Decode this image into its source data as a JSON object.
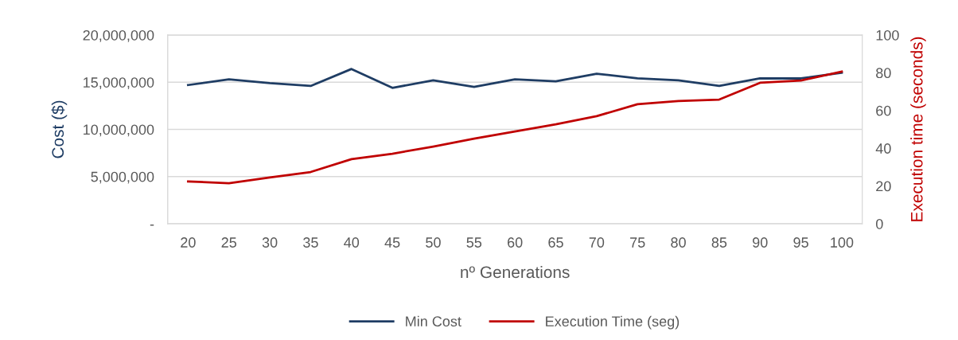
{
  "chart_data": {
    "type": "line",
    "xlabel": "nº Generations",
    "ylabel": "Cost ($)",
    "y2label": "Execution time (seconds)",
    "categories": [
      "20",
      "25",
      "30",
      "35",
      "40",
      "45",
      "50",
      "55",
      "60",
      "65",
      "70",
      "75",
      "80",
      "85",
      "90",
      "95",
      "100"
    ],
    "series": [
      {
        "name": "Min Cost",
        "color": "#1f3d64",
        "values": [
          14700000,
          15300000,
          14900000,
          14600000,
          16400000,
          14400000,
          15200000,
          14500000,
          15300000,
          15100000,
          15900000,
          15400000,
          15200000,
          14600000,
          15400000,
          15400000,
          16000000
        ]
      },
      {
        "name": "Execution Time (seg)",
        "color": "#c00000",
        "axis": "y2",
        "values": [
          22.4,
          21.5,
          24.5,
          27.4,
          34.2,
          37.1,
          40.9,
          45.1,
          48.9,
          52.7,
          57.0,
          63.3,
          65.0,
          65.8,
          74.7,
          75.9,
          80.6
        ]
      }
    ],
    "ylim": [
      0,
      20000000
    ],
    "yticks": [
      {
        "value": 0,
        "label": "-"
      },
      {
        "value": 5000000,
        "label": "5,000,000"
      },
      {
        "value": 10000000,
        "label": "10,000,000"
      },
      {
        "value": 15000000,
        "label": "15,000,000"
      },
      {
        "value": 20000000,
        "label": "20,000,000"
      }
    ],
    "y2lim": [
      0,
      100
    ],
    "y2ticks": [
      0,
      20,
      40,
      60,
      80,
      100
    ],
    "grid": "y",
    "legend": "bottom",
    "marker": "none",
    "line_style": "solid"
  }
}
